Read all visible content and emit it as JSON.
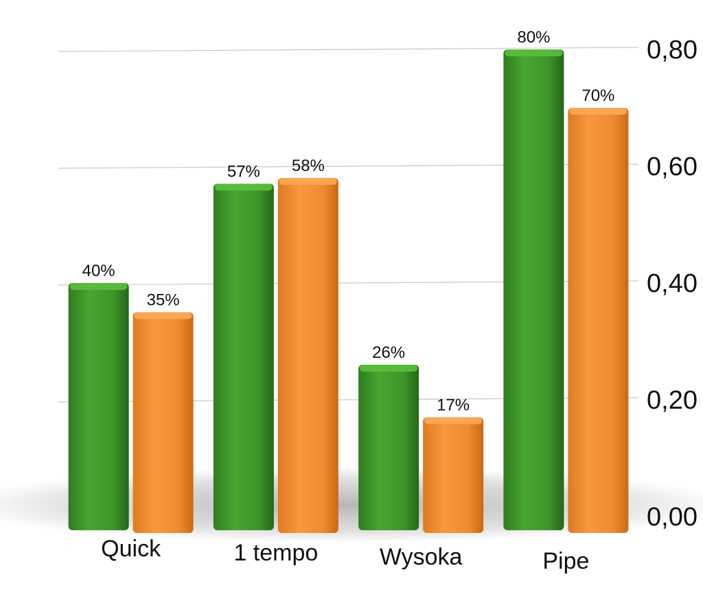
{
  "chart_data": {
    "type": "bar",
    "categories": [
      "Quick",
      "1 tempo",
      "Wysoka",
      "Pipe"
    ],
    "series": [
      {
        "values": [
          0.4,
          0.57,
          0.26,
          0.8
        ],
        "labels": [
          "40%",
          "57%",
          "26%",
          "80%"
        ],
        "color": "#3f9a2c"
      },
      {
        "values": [
          0.35,
          0.58,
          0.17,
          0.7
        ],
        "labels": [
          "35%",
          "58%",
          "17%",
          "70%"
        ],
        "color": "#f39035"
      }
    ],
    "yticks": [
      "0,00",
      "0,20",
      "0,40",
      "0,60",
      "0,80"
    ],
    "ylim": [
      0,
      0.8
    ],
    "y_axis_side": "right",
    "grid": true,
    "legend": "none",
    "title": "",
    "xlabel": "",
    "ylabel": ""
  }
}
